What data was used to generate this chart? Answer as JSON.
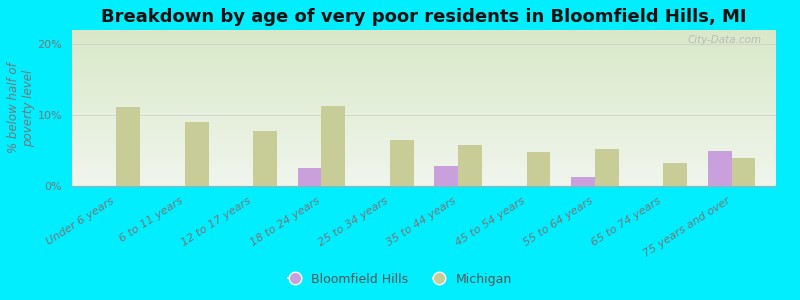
{
  "title": "Breakdown by age of very poor residents in Bloomfield Hills, MI",
  "ylabel": "% below half of\npoverty level",
  "categories": [
    "Under 6 years",
    "6 to 11 years",
    "12 to 17 years",
    "18 to 24 years",
    "25 to 34 years",
    "35 to 44 years",
    "45 to 54 years",
    "55 to 64 years",
    "65 to 74 years",
    "75 years and over"
  ],
  "bloomfield_values": [
    0,
    0,
    0,
    2.5,
    0,
    2.8,
    0,
    1.2,
    0,
    5.0
  ],
  "michigan_values": [
    11.2,
    9.0,
    7.8,
    11.3,
    6.5,
    5.8,
    4.8,
    5.2,
    3.2,
    4.0
  ],
  "bloomfield_color": "#c9a0dc",
  "michigan_color": "#c8cc96",
  "background_outer": "#00eeff",
  "background_plot_top": "#d8e8c8",
  "background_plot_bottom": "#f0f5ec",
  "ylim": [
    0,
    22
  ],
  "yticks": [
    0,
    10,
    20
  ],
  "ytick_labels": [
    "0%",
    "10%",
    "20%"
  ],
  "title_fontsize": 13,
  "axis_label_fontsize": 8.5,
  "tick_fontsize": 8,
  "legend_bloomfield": "Bloomfield Hills",
  "legend_michigan": "Michigan",
  "bar_width": 0.35,
  "watermark": "City-Data.com"
}
